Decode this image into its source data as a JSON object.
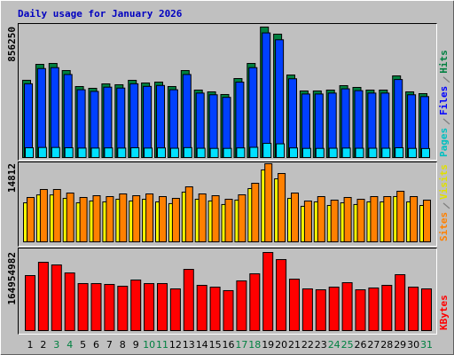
{
  "chart_data": [
    {
      "type": "bar",
      "title": "Daily usage for January 2026",
      "title_color": "#0000c0",
      "ylim": [
        0,
        856250
      ],
      "yticks": [
        856250
      ],
      "series": [
        {
          "name": "Hits",
          "color": "#008040",
          "label_color": "#008040",
          "values": [
            507000,
            611600,
            617500,
            570900,
            466000,
            454400,
            483500,
            477700,
            506800,
            489300,
            495100,
            466000,
            570900,
            442700,
            431000,
            413600,
            518400,
            617500,
            856250,
            809700,
            541700,
            436900,
            436900,
            442700,
            471800,
            460200,
            442700,
            442700,
            535900,
            431000,
            419400
          ]
        },
        {
          "name": "Files",
          "color": "#0040ff",
          "label_color": "#0000ff",
          "values": [
            484000,
            584000,
            590000,
            545000,
            445000,
            434000,
            462000,
            456000,
            484000,
            467000,
            473000,
            445000,
            545000,
            423000,
            412000,
            395000,
            495000,
            590000,
            818000,
            773000,
            517000,
            417000,
            417000,
            423000,
            451000,
            439000,
            423000,
            423000,
            512000,
            412000,
            400000
          ]
        },
        {
          "name": "Pages",
          "color": "#00e0ff",
          "label_color": "#00c0c0",
          "values": [
            64000,
            66000,
            66000,
            64000,
            62000,
            62000,
            63000,
            62000,
            64000,
            62000,
            63000,
            61000,
            65000,
            61000,
            60000,
            60000,
            63000,
            67000,
            93000,
            90000,
            63000,
            60000,
            60000,
            61000,
            62000,
            61000,
            61000,
            61000,
            64000,
            60000,
            59000
          ]
        }
      ]
    },
    {
      "type": "bar",
      "ylim": [
        0,
        14812
      ],
      "yticks": [
        14812
      ],
      "series": [
        {
          "name": "Visits",
          "color": "#ffff00",
          "label_color": "#e0e000",
          "values": [
            7400,
            8900,
            8900,
            8250,
            7400,
            7750,
            7580,
            8080,
            7750,
            8080,
            7580,
            7250,
            9430,
            8080,
            7750,
            7080,
            7920,
            10100,
            13640,
            11950,
            8250,
            6740,
            7580,
            6900,
            7400,
            7080,
            7580,
            7580,
            8590,
            7580,
            6900
          ]
        },
        {
          "name": "Sites",
          "color": "#ff8000",
          "label_color": "#ff8000",
          "values": [
            8416,
            9930,
            9930,
            9257,
            8416,
            8752,
            8584,
            9089,
            8752,
            9089,
            8584,
            8247,
            10435,
            9089,
            8752,
            8079,
            8921,
            11109,
            14812,
            12960,
            9257,
            7742,
            8584,
            7911,
            8416,
            8079,
            8584,
            8584,
            9594,
            8584,
            7911
          ]
        }
      ]
    },
    {
      "type": "bar",
      "ylim": [
        0,
        164954982
      ],
      "yticks": [
        164954982
      ],
      "categories": [
        "1",
        "2",
        "3",
        "4",
        "5",
        "6",
        "7",
        "8",
        "9",
        "10",
        "11",
        "12",
        "13",
        "14",
        "15",
        "16",
        "17",
        "18",
        "19",
        "20",
        "21",
        "22",
        "23",
        "24",
        "25",
        "26",
        "27",
        "28",
        "29",
        "30",
        "31"
      ],
      "category_colors": [
        "#000000",
        "#000000",
        "#008040",
        "#008040",
        "#000000",
        "#000000",
        "#000000",
        "#000000",
        "#000000",
        "#008040",
        "#008040",
        "#000000",
        "#000000",
        "#000000",
        "#000000",
        "#000000",
        "#008040",
        "#008040",
        "#000000",
        "#000000",
        "#000000",
        "#000000",
        "#000000",
        "#008040",
        "#008040",
        "#000000",
        "#000000",
        "#000000",
        "#000000",
        "#000000",
        "#008040"
      ],
      "series": [
        {
          "name": "KBytes",
          "color": "#ff0000",
          "label_color": "#ff0000",
          "values": [
            116200000,
            144300000,
            138700000,
            121800000,
            99300000,
            99300000,
            97500000,
            93700000,
            106800000,
            99300000,
            99300000,
            88100000,
            129300000,
            95600000,
            91800000,
            84400000,
            105000000,
            120000000,
            164954982,
            150000000,
            108700000,
            88100000,
            86200000,
            91800000,
            101200000,
            86200000,
            90000000,
            95600000,
            118100000,
            91800000,
            88100000
          ]
        }
      ]
    }
  ]
}
